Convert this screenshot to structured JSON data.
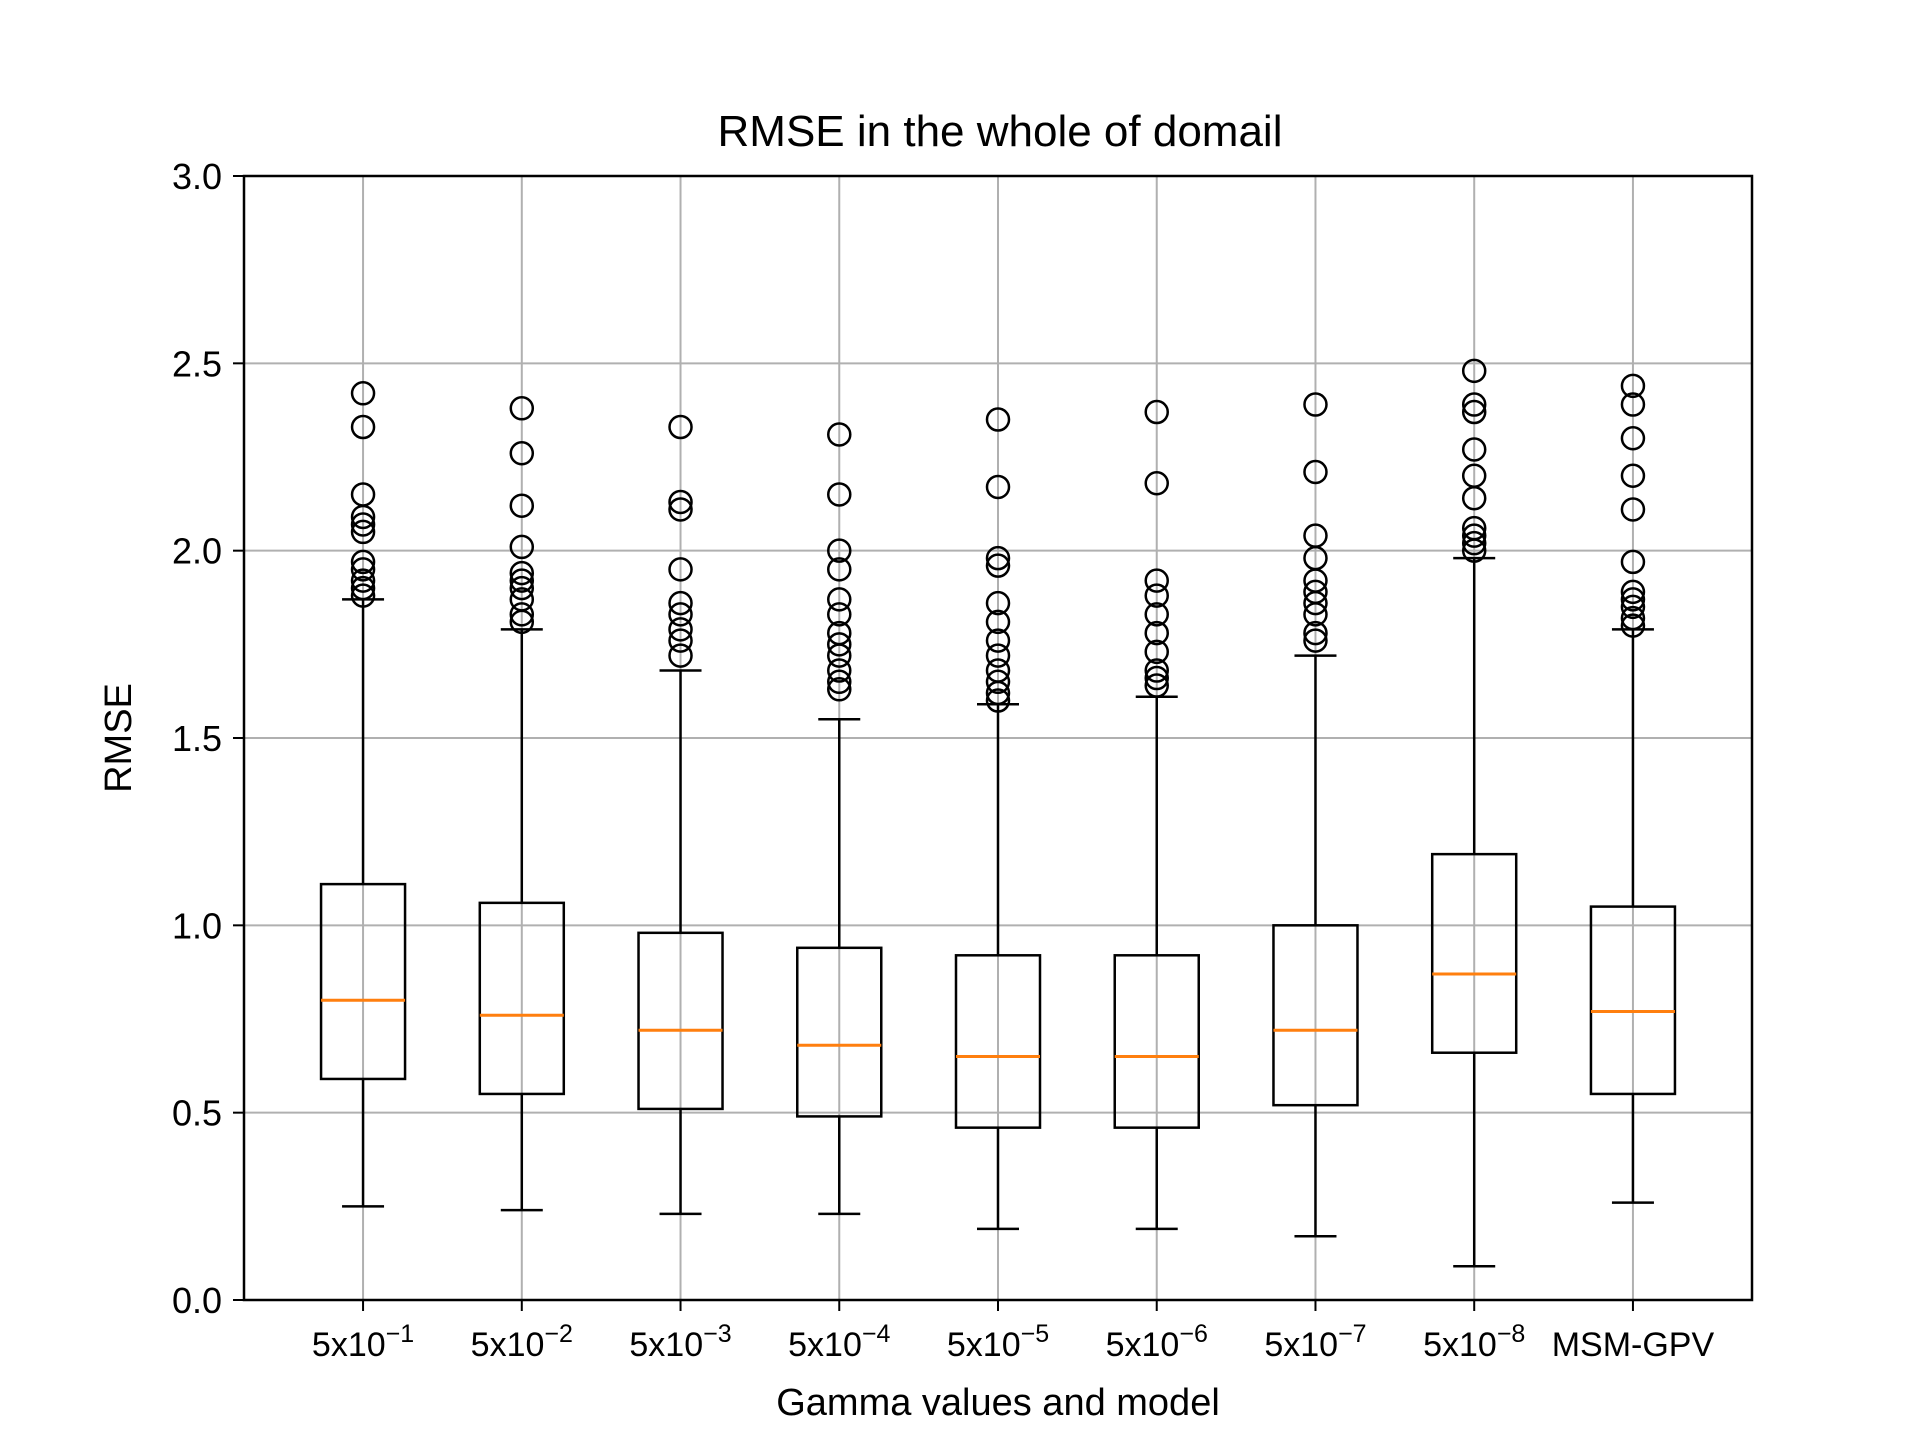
{
  "chart_data": {
    "type": "box",
    "title": "RMSE in the whole of domail",
    "xlabel": "Gamma values and model",
    "ylabel": "RMSE",
    "ylim": [
      0.0,
      3.0
    ],
    "yticks": [
      "0.0",
      "0.5",
      "1.0",
      "1.5",
      "2.0",
      "2.5",
      "3.0"
    ],
    "ytick_values": [
      0.0,
      0.5,
      1.0,
      1.5,
      2.0,
      2.5,
      3.0
    ],
    "grid": true,
    "colors": {
      "median": "#ff7f0e",
      "box": "#000000",
      "grid": "#b0b0b0"
    },
    "categories": [
      {
        "base": "5x10",
        "exp": "−1"
      },
      {
        "base": "5x10",
        "exp": "−2"
      },
      {
        "base": "5x10",
        "exp": "−3"
      },
      {
        "base": "5x10",
        "exp": "−4"
      },
      {
        "base": "5x10",
        "exp": "−5"
      },
      {
        "base": "5x10",
        "exp": "−6"
      },
      {
        "base": "5x10",
        "exp": "−7"
      },
      {
        "base": "5x10",
        "exp": "−8"
      },
      {
        "base": "MSM-GPV",
        "exp": ""
      }
    ],
    "boxes": [
      {
        "whislo": 0.25,
        "q1": 0.59,
        "med": 0.8,
        "q3": 1.11,
        "whishi": 1.87,
        "fliers": [
          1.88,
          1.9,
          1.92,
          1.95,
          1.97,
          2.05,
          2.07,
          2.09,
          2.15,
          2.33,
          2.42
        ]
      },
      {
        "whislo": 0.24,
        "q1": 0.55,
        "med": 0.76,
        "q3": 1.06,
        "whishi": 1.79,
        "fliers": [
          1.81,
          1.83,
          1.87,
          1.9,
          1.92,
          1.94,
          2.01,
          2.12,
          2.26,
          2.38
        ]
      },
      {
        "whislo": 0.23,
        "q1": 0.51,
        "med": 0.72,
        "q3": 0.98,
        "whishi": 1.68,
        "fliers": [
          1.72,
          1.76,
          1.79,
          1.83,
          1.86,
          1.95,
          2.11,
          2.13,
          2.33
        ]
      },
      {
        "whislo": 0.23,
        "q1": 0.49,
        "med": 0.68,
        "q3": 0.94,
        "whishi": 1.55,
        "fliers": [
          1.63,
          1.65,
          1.68,
          1.72,
          1.75,
          1.78,
          1.83,
          1.87,
          1.95,
          2.0,
          2.15,
          2.31
        ]
      },
      {
        "whislo": 0.19,
        "q1": 0.46,
        "med": 0.65,
        "q3": 0.92,
        "whishi": 1.59,
        "fliers": [
          1.6,
          1.62,
          1.65,
          1.68,
          1.72,
          1.76,
          1.81,
          1.86,
          1.96,
          1.98,
          2.17,
          2.35
        ]
      },
      {
        "whislo": 0.19,
        "q1": 0.46,
        "med": 0.65,
        "q3": 0.92,
        "whishi": 1.61,
        "fliers": [
          1.64,
          1.66,
          1.68,
          1.73,
          1.78,
          1.83,
          1.88,
          1.92,
          2.18,
          2.37
        ]
      },
      {
        "whislo": 0.17,
        "q1": 0.52,
        "med": 0.72,
        "q3": 1.0,
        "whishi": 1.72,
        "fliers": [
          1.76,
          1.78,
          1.83,
          1.86,
          1.89,
          1.92,
          1.98,
          2.04,
          2.21,
          2.39
        ]
      },
      {
        "whislo": 0.09,
        "q1": 0.66,
        "med": 0.87,
        "q3": 1.19,
        "whishi": 1.98,
        "fliers": [
          2.0,
          2.02,
          2.04,
          2.06,
          2.14,
          2.2,
          2.27,
          2.37,
          2.39,
          2.48
        ]
      },
      {
        "whislo": 0.26,
        "q1": 0.55,
        "med": 0.77,
        "q3": 1.05,
        "whishi": 1.79,
        "fliers": [
          1.8,
          1.82,
          1.85,
          1.87,
          1.89,
          1.97,
          2.11,
          2.2,
          2.3,
          2.39,
          2.44
        ]
      }
    ]
  }
}
